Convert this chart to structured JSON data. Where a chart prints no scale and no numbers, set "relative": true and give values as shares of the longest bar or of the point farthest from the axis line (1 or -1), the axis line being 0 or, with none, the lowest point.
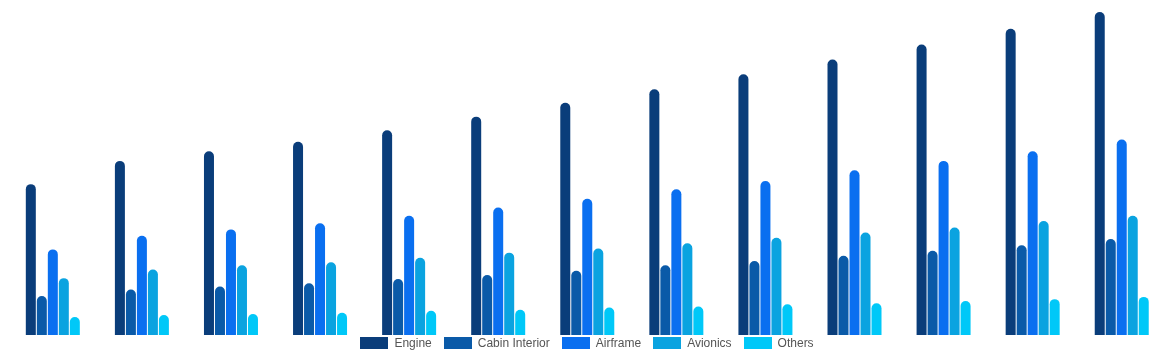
{
  "chart_data": {
    "type": "bar",
    "relative": true,
    "legend": "bottom",
    "categories": [
      null,
      null,
      null,
      null,
      null,
      null,
      null,
      null,
      null,
      null,
      null,
      null,
      null
    ],
    "series": [
      {
        "name": "Engine",
        "color": "#0a3d7a",
        "values": [
          0.467,
          0.539,
          0.569,
          0.598,
          0.634,
          0.676,
          0.719,
          0.761,
          0.807,
          0.853,
          0.899,
          0.948,
          1
        ]
      },
      {
        "name": "Cabin Interior",
        "color": "#0a5aa8",
        "values": [
          0.121,
          0.141,
          0.15,
          0.16,
          0.173,
          0.186,
          0.199,
          0.216,
          0.229,
          0.245,
          0.261,
          0.278,
          0.297
        ]
      },
      {
        "name": "Airframe",
        "color": "#0a6ff0",
        "values": [
          0.265,
          0.307,
          0.327,
          0.346,
          0.369,
          0.395,
          0.422,
          0.451,
          0.477,
          0.51,
          0.539,
          0.569,
          0.605
        ]
      },
      {
        "name": "Avionics",
        "color": "#0aa3e0",
        "values": [
          0.176,
          0.203,
          0.216,
          0.225,
          0.239,
          0.255,
          0.268,
          0.284,
          0.301,
          0.317,
          0.333,
          0.353,
          0.369
        ]
      },
      {
        "name": "Others",
        "color": "#00c8f8",
        "values": [
          0.056,
          0.062,
          0.065,
          0.069,
          0.075,
          0.078,
          0.085,
          0.088,
          0.095,
          0.098,
          0.105,
          0.111,
          0.118
        ]
      }
    ]
  }
}
